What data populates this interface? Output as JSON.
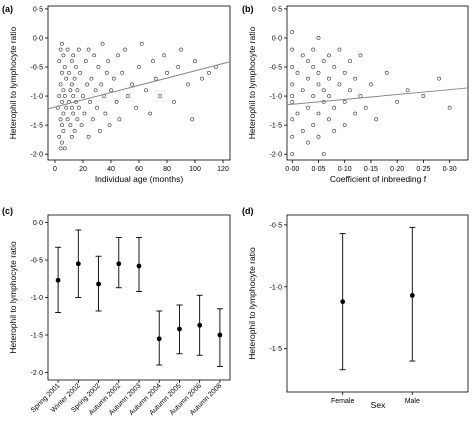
{
  "chart_data": [
    {
      "panel": "(a)",
      "type": "scatter",
      "xlabel": "Individual age (months)",
      "ylabel": "Heterophil to lymphocyte ratio",
      "xlim": [
        -5,
        125
      ],
      "ylim": [
        -2.1,
        0.55
      ],
      "xticks": [
        0,
        20,
        40,
        60,
        80,
        100,
        120
      ],
      "xtick_labels": [
        "0",
        "20",
        "40",
        "60",
        "80",
        "100",
        "120"
      ],
      "yticks": [
        0.5,
        0,
        -0.5,
        -1,
        -1.5,
        -2
      ],
      "ytick_labels": [
        "0·5",
        "0·0",
        "-0·5",
        "-1·0",
        "-1·5",
        "-2·0"
      ],
      "marker": "open-circle",
      "fit_line": {
        "x": [
          -5,
          125
        ],
        "y": [
          -1.22,
          -0.41
        ]
      },
      "points": {
        "x": [
          2,
          3,
          3,
          3,
          4,
          4,
          4,
          4,
          5,
          5,
          5,
          5,
          5,
          6,
          6,
          6,
          6,
          7,
          7,
          7,
          8,
          8,
          9,
          9,
          10,
          10,
          11,
          11,
          12,
          12,
          12,
          12,
          13,
          13,
          13,
          14,
          14,
          15,
          15,
          16,
          16,
          17,
          17,
          18,
          19,
          20,
          21,
          22,
          23,
          24,
          24,
          25,
          26,
          27,
          28,
          29,
          30,
          31,
          32,
          33,
          34,
          35,
          36,
          37,
          38,
          39,
          40,
          42,
          44,
          45,
          46,
          48,
          50,
          52,
          55,
          58,
          60,
          62,
          65,
          68,
          70,
          72,
          75,
          78,
          80,
          85,
          88,
          90,
          95,
          98,
          100,
          105,
          110,
          115
        ],
        "y": [
          -1.2,
          -1.7,
          -1.0,
          -0.4,
          -1.4,
          -1.9,
          -0.8,
          -0.2,
          -1.5,
          -1.1,
          -0.6,
          -0.1,
          -1.8,
          -1.3,
          -0.9,
          -0.3,
          -1.6,
          -1.0,
          -0.5,
          -1.9,
          -1.2,
          -0.7,
          -1.4,
          -0.2,
          -1.1,
          -0.6,
          -1.5,
          -0.9,
          -1.2,
          -0.4,
          -1.7,
          -0.8,
          -1.0,
          -0.3,
          -1.3,
          -0.7,
          -1.6,
          -0.5,
          -1.1,
          -0.9,
          -1.4,
          -0.2,
          -1.2,
          -0.6,
          -1.5,
          -1.0,
          -1.3,
          -0.4,
          -0.8,
          -1.7,
          -0.2,
          -1.1,
          -0.7,
          -1.4,
          -0.3,
          -0.9,
          -1.2,
          -0.5,
          -1.6,
          -0.8,
          -0.1,
          -1.0,
          -1.3,
          -0.6,
          -0.4,
          -1.5,
          -0.9,
          -0.7,
          -1.1,
          -0.3,
          -1.4,
          -0.6,
          -0.2,
          -1.0,
          -0.8,
          -1.2,
          -0.5,
          -0.1,
          -0.9,
          -1.3,
          -0.4,
          -0.7,
          -1.0,
          -0.3,
          -0.6,
          -1.1,
          -0.5,
          -0.2,
          -0.8,
          -1.4,
          -0.4,
          -0.7,
          -0.6,
          -0.5
        ]
      }
    },
    {
      "panel": "(b)",
      "type": "scatter",
      "xlabel": "Coefficient of inbreeding f",
      "ylabel": "Heterophil to lymphocyte ratio",
      "xlim": [
        -0.01,
        0.335
      ],
      "ylim": [
        -2.1,
        0.55
      ],
      "xticks": [
        0,
        0.05,
        0.1,
        0.15,
        0.2,
        0.25,
        0.3
      ],
      "xtick_labels": [
        "0·00",
        "0·05",
        "0·10",
        "0·15",
        "0·20",
        "0·25",
        "0·30"
      ],
      "yticks": [
        0.5,
        0,
        -0.5,
        -1,
        -1.5,
        -2
      ],
      "ytick_labels": [
        "0·5",
        "0·0",
        "-0·5",
        "-1·0",
        "-1·5",
        "-2·0"
      ],
      "marker": "open-circle",
      "fit_line": {
        "x": [
          -0.01,
          0.335
        ],
        "y": [
          -1.15,
          -0.86
        ]
      },
      "points": {
        "x": [
          0.0,
          0.0,
          0.0,
          0.0,
          0.0,
          0.0,
          0.0,
          0.0,
          0.0,
          0.01,
          0.01,
          0.02,
          0.02,
          0.02,
          0.03,
          0.03,
          0.03,
          0.03,
          0.04,
          0.04,
          0.04,
          0.04,
          0.05,
          0.05,
          0.05,
          0.05,
          0.05,
          0.06,
          0.06,
          0.06,
          0.06,
          0.07,
          0.07,
          0.07,
          0.07,
          0.08,
          0.08,
          0.08,
          0.09,
          0.09,
          0.1,
          0.1,
          0.1,
          0.11,
          0.11,
          0.12,
          0.12,
          0.13,
          0.13,
          0.14,
          0.15,
          0.16,
          0.18,
          0.2,
          0.22,
          0.25,
          0.28,
          0.3
        ],
        "y": [
          -0.2,
          -0.5,
          -0.8,
          -1.1,
          -1.4,
          -1.7,
          -2.0,
          0.1,
          -1.0,
          -0.6,
          -1.3,
          -0.3,
          -0.9,
          -1.6,
          -0.7,
          -1.2,
          -0.4,
          -1.8,
          -0.5,
          -1.0,
          -1.5,
          -0.2,
          -0.8,
          -1.3,
          0.0,
          -0.6,
          -1.7,
          -0.4,
          -1.1,
          -0.9,
          -2.0,
          -0.7,
          -1.4,
          -0.3,
          -1.0,
          -0.5,
          -1.2,
          -1.6,
          -0.8,
          -0.2,
          -0.6,
          -1.1,
          -1.5,
          -0.9,
          -0.4,
          -1.3,
          -0.7,
          -1.0,
          -0.3,
          -1.2,
          -0.8,
          -1.4,
          -0.6,
          -1.1,
          -0.9,
          -1.0,
          -0.7,
          -1.2
        ]
      }
    },
    {
      "panel": "(c)",
      "type": "errorbar",
      "xlabel": "",
      "ylabel": "Heterophil to lymphocyte ratio",
      "ylim": [
        -2.1,
        0.1
      ],
      "yticks": [
        0,
        -0.5,
        -1,
        -1.5,
        -2
      ],
      "ytick_labels": [
        "0·0",
        "-0·5",
        "-1·0",
        "-1·5",
        "-2·0"
      ],
      "categories": [
        "Spring 2001",
        "Winter 2002",
        "Spring 2002",
        "Autumn 2002",
        "Autumn 2003",
        "Autumn 2004",
        "Autumn 2005",
        "Autumn 2006",
        "Autumn 2008"
      ],
      "values": [
        -0.77,
        -0.55,
        -0.82,
        -0.55,
        -0.58,
        -1.55,
        -1.42,
        -1.37,
        -1.5
      ],
      "lower": [
        -1.2,
        -1.0,
        -1.18,
        -0.87,
        -0.92,
        -1.9,
        -1.75,
        -1.77,
        -1.92
      ],
      "upper": [
        -0.33,
        -0.1,
        -0.45,
        -0.2,
        -0.2,
        -1.18,
        -1.1,
        -0.97,
        -1.15
      ]
    },
    {
      "panel": "(d)",
      "type": "errorbar",
      "xlabel": "Sex",
      "ylabel": "Heterophil to lymphocyte ratio",
      "ylim": [
        -1.85,
        -0.42
      ],
      "yticks": [
        -0.5,
        -1,
        -1.5
      ],
      "ytick_labels": [
        "-0·5",
        "-1·0",
        "-1·5"
      ],
      "categories": [
        "Female",
        "Male"
      ],
      "values": [
        -1.12,
        -1.07
      ],
      "lower": [
        -1.67,
        -1.6
      ],
      "upper": [
        -0.57,
        -0.52
      ]
    }
  ]
}
